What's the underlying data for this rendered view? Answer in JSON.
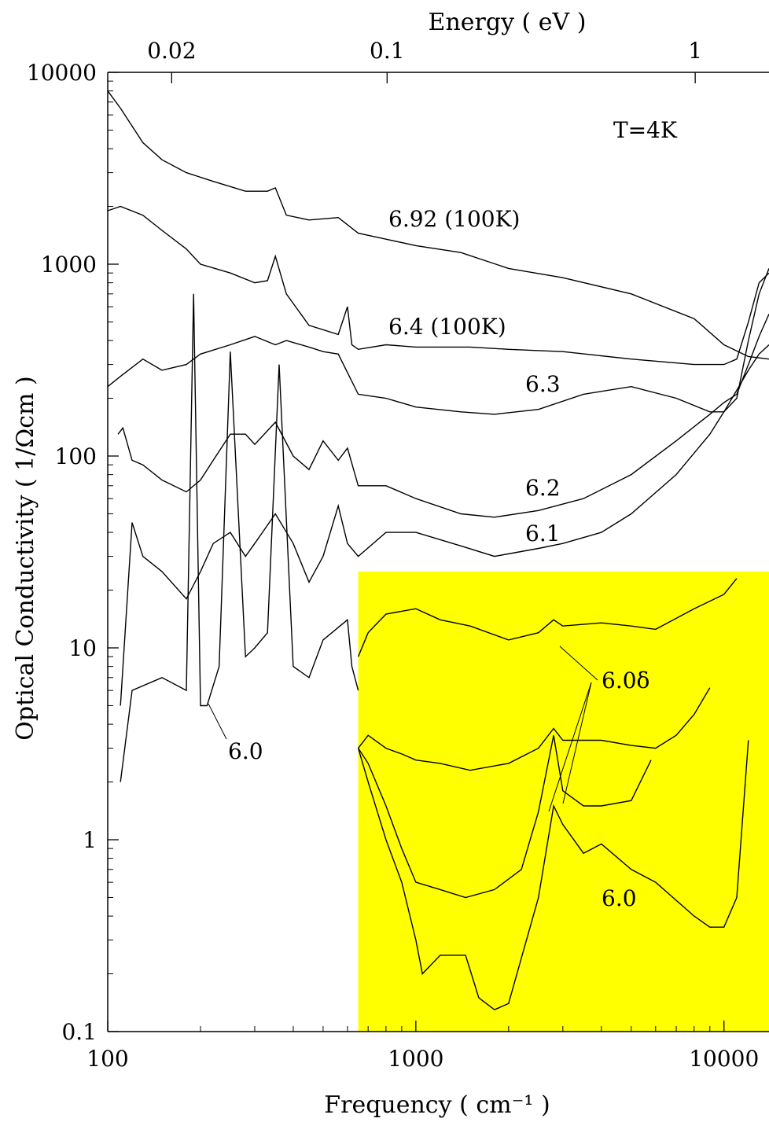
{
  "chart_data": {
    "type": "line",
    "xlabel": "Frequency ( cm⁻¹ )",
    "x2label": "Energy ( eV )",
    "ylabel": "Optical Conductivity ( 1/Ωcm )",
    "xscale": "log",
    "yscale": "log",
    "xlim": [
      100,
      14000
    ],
    "ylim": [
      0.1,
      10000
    ],
    "x_ticks": [
      "100",
      "1000",
      "10000"
    ],
    "x_tick_values": [
      100,
      1000,
      10000
    ],
    "y_ticks": [
      "0.1",
      "1",
      "10",
      "100",
      "1000",
      "10000"
    ],
    "y_tick_values": [
      0.1,
      1,
      10,
      100,
      1000,
      10000
    ],
    "top_ticks": [
      "0.02",
      "0.1",
      "1"
    ],
    "top_tick_values_cm": [
      161.3,
      806.6,
      8066
    ],
    "highlight_region": {
      "x": [
        650,
        14000
      ],
      "y": [
        0.1,
        25
      ],
      "color": "#ffff00"
    },
    "series": [
      {
        "name": "6.92 (100K)",
        "x": [
          100,
          110,
          130,
          150,
          180,
          220,
          280,
          330,
          350,
          380,
          450,
          560,
          650,
          800,
          1000,
          1400,
          2000,
          3000,
          5000,
          8000,
          10000,
          12000,
          14000
        ],
        "y": [
          8000,
          6500,
          4300,
          3500,
          3000,
          2700,
          2400,
          2400,
          2500,
          1800,
          1700,
          1750,
          1450,
          1350,
          1250,
          1150,
          950,
          850,
          700,
          520,
          380,
          330,
          320
        ]
      },
      {
        "name": "6.4 (100K)",
        "x": [
          100,
          110,
          130,
          150,
          180,
          200,
          250,
          300,
          330,
          350,
          380,
          450,
          560,
          600,
          620,
          650,
          800,
          1000,
          1500,
          2000,
          3000,
          5000,
          8000,
          10000,
          11000,
          12000,
          13000,
          14000
        ],
        "y": [
          1900,
          2000,
          1800,
          1500,
          1200,
          1000,
          900,
          800,
          820,
          1100,
          700,
          480,
          430,
          600,
          380,
          360,
          380,
          370,
          370,
          360,
          350,
          320,
          300,
          300,
          320,
          500,
          800,
          900
        ]
      },
      {
        "name": "6.3",
        "x": [
          100,
          110,
          130,
          150,
          180,
          200,
          250,
          300,
          350,
          380,
          450,
          500,
          560,
          650,
          800,
          1000,
          1400,
          1800,
          2500,
          3500,
          5000,
          7000,
          9000,
          10000,
          11000,
          12000,
          13000,
          14000
        ],
        "y": [
          230,
          260,
          320,
          280,
          300,
          340,
          380,
          420,
          380,
          400,
          370,
          350,
          340,
          210,
          200,
          180,
          170,
          165,
          175,
          210,
          230,
          200,
          170,
          170,
          200,
          400,
          700,
          950
        ]
      },
      {
        "name": "6.2",
        "x": [
          108,
          112,
          120,
          130,
          150,
          180,
          200,
          220,
          250,
          280,
          300,
          350,
          400,
          450,
          500,
          560,
          600,
          650,
          800,
          1000,
          1400,
          1800,
          2500,
          3500,
          5000,
          7000,
          9000,
          10000,
          11000,
          12000,
          13000,
          14000
        ],
        "y": [
          130,
          140,
          95,
          90,
          75,
          65,
          75,
          95,
          130,
          130,
          115,
          150,
          100,
          85,
          120,
          95,
          110,
          70,
          70,
          60,
          50,
          48,
          52,
          60,
          80,
          120,
          165,
          190,
          210,
          300,
          420,
          550
        ]
      },
      {
        "name": "6.1",
        "x": [
          110,
          120,
          130,
          150,
          180,
          200,
          220,
          250,
          280,
          300,
          350,
          400,
          450,
          500,
          560,
          600,
          650,
          800,
          1000,
          1400,
          1800,
          2500,
          3000,
          4000,
          5000,
          7000,
          9000,
          10000,
          11000,
          12000,
          13000,
          14000
        ],
        "y": [
          5,
          45,
          30,
          25,
          18,
          25,
          35,
          40,
          30,
          35,
          50,
          35,
          22,
          30,
          55,
          35,
          30,
          40,
          40,
          34,
          30,
          33,
          35,
          40,
          50,
          80,
          130,
          170,
          220,
          280,
          340,
          380
        ]
      },
      {
        "name": "6.0",
        "x": [
          110,
          120,
          150,
          180,
          190,
          200,
          210,
          230,
          250,
          280,
          300,
          330,
          360,
          400,
          450,
          500,
          600,
          620,
          650
        ],
        "y": [
          2,
          6,
          7,
          6,
          700,
          5,
          5,
          8,
          350,
          9,
          10,
          12,
          300,
          8,
          7,
          11,
          14,
          8,
          6
        ]
      },
      {
        "name": "6.0δ",
        "x": [
          650,
          700,
          800,
          1000,
          1200,
          1500,
          2000,
          2500,
          2800,
          3000,
          4000,
          5000,
          6000,
          8000,
          10000,
          11000
        ],
        "y": [
          9,
          12,
          15,
          16,
          14,
          13,
          11,
          12,
          14,
          13,
          13.5,
          13,
          12.5,
          16,
          19,
          23
        ]
      },
      {
        "name": "6.0δ",
        "x": [
          650,
          700,
          800,
          900,
          1000,
          1200,
          1500,
          2000,
          2500,
          2800,
          3000,
          4000,
          5000,
          6000,
          7000,
          8000,
          9000
        ],
        "y": [
          3,
          3.5,
          3,
          2.8,
          2.6,
          2.5,
          2.3,
          2.5,
          3,
          3.8,
          3.3,
          3.3,
          3.1,
          3,
          3.5,
          4.5,
          6.2
        ]
      },
      {
        "name": "6.0δ",
        "x": [
          650,
          700,
          800,
          900,
          1000,
          1200,
          1450,
          1800,
          2200,
          2500,
          2800,
          3000,
          3500,
          4000,
          5000,
          5800
        ],
        "y": [
          3,
          2.5,
          1.5,
          0.9,
          0.6,
          0.55,
          0.5,
          0.55,
          0.7,
          1.4,
          3.5,
          1.8,
          1.5,
          1.5,
          1.6,
          2.6
        ]
      },
      {
        "name": "6.0",
        "x": [
          650,
          700,
          800,
          900,
          1000,
          1050,
          1200,
          1450,
          1600,
          1800,
          2000,
          2500,
          2800,
          3000,
          3500,
          4000,
          5000,
          6000,
          8000,
          9000,
          10000,
          11000,
          12000
        ],
        "y": [
          3,
          2,
          1,
          0.6,
          0.3,
          0.2,
          0.25,
          0.25,
          0.15,
          0.13,
          0.14,
          0.5,
          1.5,
          1.2,
          0.85,
          0.95,
          0.7,
          0.6,
          0.4,
          0.35,
          0.35,
          0.5,
          3.3
        ]
      }
    ],
    "annotations": [
      "T=4K",
      "6.92 (100K)",
      "6.4 (100K)",
      "6.3",
      "6.2",
      "6.1",
      "6.0",
      "6.0δ",
      "6.0"
    ]
  }
}
